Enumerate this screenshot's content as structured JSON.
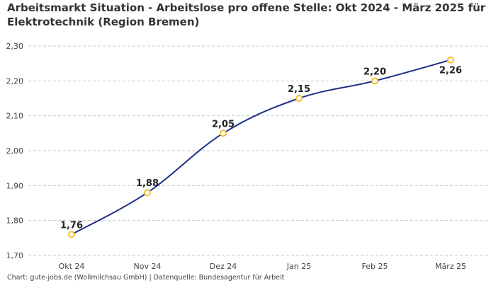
{
  "chart_data": {
    "type": "line",
    "title": "Arbeitsmarkt Situation - Arbeitslose pro offene Stelle: Okt 2024 - März 2025 für Elektrotechnik (Region Bremen)",
    "categories": [
      "Okt 24",
      "Nov 24",
      "Dez 24",
      "Jan 25",
      "Feb 25",
      "März 25"
    ],
    "values": [
      1.76,
      1.88,
      2.05,
      2.15,
      2.2,
      2.26
    ],
    "value_labels": [
      "1,76",
      "1,88",
      "2,05",
      "2,15",
      "2,20",
      "2,26"
    ],
    "yticks": [
      1.7,
      1.8,
      1.9,
      2.0,
      2.1,
      2.2,
      2.3
    ],
    "ytick_labels": [
      "1,70",
      "1,80",
      "1,90",
      "2,00",
      "2,10",
      "2,20",
      "2,30"
    ],
    "ylim": [
      1.7,
      2.3
    ],
    "xlabel": "",
    "ylabel": "",
    "grid": true,
    "line_color": "#1f2f86",
    "marker_color": "#f2c12e"
  },
  "footer": "Chart: gute-jobs.de (Wollmilchsau GmbH) | Datenquelle: Bundesagentur für Arbeit"
}
